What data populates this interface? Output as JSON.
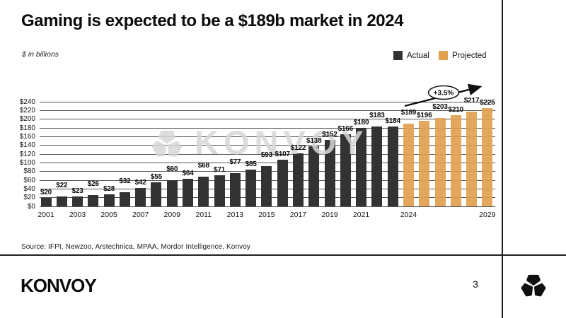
{
  "slide": {
    "title": "Gaming is expected to be a $189b market in 2024",
    "unit_note": "$ in billions",
    "source": "Source: IFPI, Newzoo, Arstechnica, MPAA, Mordor Intelligence, Konvoy",
    "page_number": "3",
    "brand_wordmark": "KONVOY",
    "watermark_text": "KONVOY"
  },
  "legend": {
    "actual_label": "Actual",
    "projected_label": "Projected"
  },
  "colors": {
    "actual": "#333333",
    "projected": "#E1A14F",
    "gridline": "#565656"
  },
  "chart_data": {
    "type": "bar",
    "title": "Gaming is expected to be a $189b market in 2024",
    "unit": "$ in billions",
    "categories": [
      2001,
      2002,
      2003,
      2004,
      2005,
      2006,
      2007,
      2008,
      2009,
      2010,
      2011,
      2012,
      2013,
      2014,
      2015,
      2016,
      2017,
      2018,
      2019,
      2020,
      2021,
      2022,
      2023,
      2024,
      2025,
      2026,
      2027,
      2028,
      2029
    ],
    "series": [
      {
        "name": "Actual",
        "color": "#333333",
        "start_year": 2001,
        "values": [
          20,
          22,
          23,
          26,
          28,
          32,
          42,
          55,
          60,
          64,
          68,
          71,
          77,
          85,
          93,
          107,
          122,
          138,
          152,
          166,
          180,
          183,
          184
        ]
      },
      {
        "name": "Projected",
        "color": "#E1A14F",
        "start_year": 2024,
        "values": [
          189,
          196,
          203,
          210,
          217,
          225
        ]
      }
    ],
    "ylim": [
      0,
      240
    ],
    "ytick_step": 20,
    "ytick_prefix": "$",
    "value_label_prefix": "$",
    "xtick_labels": [
      "2001",
      "2003",
      "2005",
      "2007",
      "2009",
      "2011",
      "2013",
      "2015",
      "2017",
      "2019",
      "2021",
      "2024",
      "2029"
    ],
    "gridlines": "horizontal",
    "legend_position": "top-right",
    "annotation": {
      "type": "growth-arrow",
      "label": "+3.5%"
    }
  }
}
